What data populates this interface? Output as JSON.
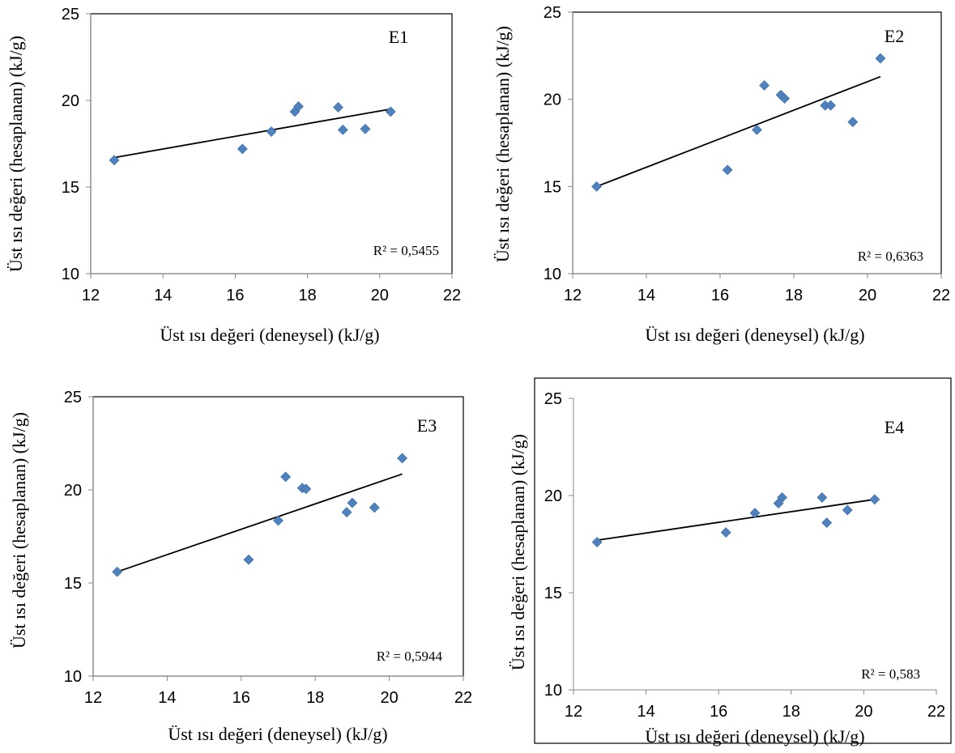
{
  "figure": {
    "chart_data": [
      {
        "type": "scatter",
        "title": "E1",
        "xlabel": "Üst ısı değeri (deneysel) (kJ/g)",
        "ylabel": "Üst ısı değeri (hesaplanan) (kJ/g)",
        "xlim": [
          12,
          22
        ],
        "ylim": [
          10,
          25
        ],
        "x_ticks": [
          "12",
          "14",
          "16",
          "18",
          "20",
          "22"
        ],
        "y_ticks": [
          "10",
          "15",
          "20",
          "25"
        ],
        "r2_label": "R² = 0,5455",
        "trendline": {
          "x": [
            12.65,
            20.3
          ],
          "y": [
            16.7,
            19.5
          ]
        },
        "points": [
          {
            "x": 12.65,
            "y": 16.55
          },
          {
            "x": 16.2,
            "y": 17.2
          },
          {
            "x": 17.0,
            "y": 18.2
          },
          {
            "x": 17.65,
            "y": 19.35
          },
          {
            "x": 17.75,
            "y": 19.65
          },
          {
            "x": 18.85,
            "y": 19.6
          },
          {
            "x": 18.98,
            "y": 18.3
          },
          {
            "x": 19.6,
            "y": 18.35
          },
          {
            "x": 20.3,
            "y": 19.35
          }
        ]
      },
      {
        "type": "scatter",
        "title": "E2",
        "xlabel": "Üst ısı değeri (deneysel) (kJ/g)",
        "ylabel": "Üst ısı değeri (hesaplanan) (kJ/g)",
        "xlim": [
          12,
          22
        ],
        "ylim": [
          10,
          25
        ],
        "x_ticks": [
          "12",
          "14",
          "16",
          "18",
          "20",
          "22"
        ],
        "y_ticks": [
          "10",
          "15",
          "20",
          "25"
        ],
        "r2_label": "R² = 0,6363",
        "trendline": {
          "x": [
            12.65,
            20.35
          ],
          "y": [
            15.0,
            21.3
          ]
        },
        "points": [
          {
            "x": 12.65,
            "y": 15.0
          },
          {
            "x": 16.2,
            "y": 15.95
          },
          {
            "x": 17.0,
            "y": 18.25
          },
          {
            "x": 17.2,
            "y": 20.8
          },
          {
            "x": 17.65,
            "y": 20.25
          },
          {
            "x": 17.75,
            "y": 20.05
          },
          {
            "x": 18.85,
            "y": 19.65
          },
          {
            "x": 19.0,
            "y": 19.65
          },
          {
            "x": 19.6,
            "y": 18.7
          },
          {
            "x": 20.35,
            "y": 22.35
          }
        ]
      },
      {
        "type": "scatter",
        "title": "E3",
        "xlabel": "Üst ısı değeri (deneysel) (kJ/g)",
        "ylabel": "Üst ısı değeri (hesaplanan) (kJ/g)",
        "xlim": [
          12,
          22
        ],
        "ylim": [
          10,
          25
        ],
        "x_ticks": [
          "12",
          "14",
          "16",
          "18",
          "20",
          "22"
        ],
        "y_ticks": [
          "10",
          "15",
          "20",
          "25"
        ],
        "r2_label": "R² = 0,5944",
        "trendline": {
          "x": [
            12.65,
            20.35
          ],
          "y": [
            15.6,
            20.85
          ]
        },
        "points": [
          {
            "x": 12.65,
            "y": 15.6
          },
          {
            "x": 16.2,
            "y": 16.25
          },
          {
            "x": 17.0,
            "y": 18.35
          },
          {
            "x": 17.2,
            "y": 20.7
          },
          {
            "x": 17.65,
            "y": 20.1
          },
          {
            "x": 17.75,
            "y": 20.05
          },
          {
            "x": 18.85,
            "y": 18.8
          },
          {
            "x": 19.0,
            "y": 19.3
          },
          {
            "x": 19.6,
            "y": 19.05
          },
          {
            "x": 20.35,
            "y": 21.7
          }
        ]
      },
      {
        "type": "scatter",
        "title": "E4",
        "xlabel": "Üst ısı değeri (deneysel) (kJ/g)",
        "ylabel": "Üst ısı değeri (hesaplanan) (kJ/g)",
        "xlim": [
          12,
          22
        ],
        "ylim": [
          10,
          25
        ],
        "x_ticks": [
          "12",
          "14",
          "16",
          "18",
          "20",
          "22"
        ],
        "y_ticks": [
          "10",
          "15",
          "20",
          "25"
        ],
        "r2_label": "R² = 0,583",
        "trendline": {
          "x": [
            12.65,
            20.3
          ],
          "y": [
            17.7,
            19.8
          ]
        },
        "points": [
          {
            "x": 12.65,
            "y": 17.6
          },
          {
            "x": 16.2,
            "y": 18.1
          },
          {
            "x": 17.0,
            "y": 19.1
          },
          {
            "x": 17.65,
            "y": 19.6
          },
          {
            "x": 17.75,
            "y": 19.9
          },
          {
            "x": 18.85,
            "y": 19.9
          },
          {
            "x": 18.98,
            "y": 18.6
          },
          {
            "x": 19.55,
            "y": 19.25
          },
          {
            "x": 20.3,
            "y": 19.8
          }
        ]
      }
    ],
    "colors": {
      "marker": "#4f81bd",
      "trendline": "#000000",
      "frame": "#000000",
      "axis": "#888888"
    }
  }
}
